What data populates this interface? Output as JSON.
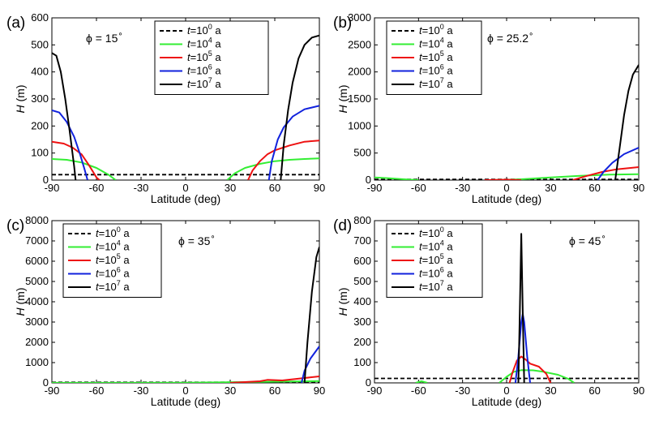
{
  "figure": {
    "legend_entries": [
      {
        "t_base": "10",
        "t_exp": "0",
        "unit": "a",
        "color": "#000000",
        "dash": true
      },
      {
        "t_base": "10",
        "t_exp": "4",
        "unit": "a",
        "color": "#33ee33",
        "dash": false
      },
      {
        "t_base": "10",
        "t_exp": "5",
        "unit": "a",
        "color": "#ee1111",
        "dash": false
      },
      {
        "t_base": "10",
        "t_exp": "6",
        "unit": "a",
        "color": "#1122dd",
        "dash": false
      },
      {
        "t_base": "10",
        "t_exp": "7",
        "unit": "a",
        "color": "#000000",
        "dash": false
      }
    ],
    "t_symbol": "t",
    "equals": "=",
    "phi_symbol": "ϕ"
  },
  "chart_data": [
    {
      "type": "line",
      "panel_label": "(a)",
      "phi_value": "15",
      "phi_unit": "∘",
      "xlabel": "Latitude (deg)",
      "ylabel_symbol": "H",
      "ylabel_unit": "(m)",
      "xlim": [
        -90,
        90
      ],
      "ylim": [
        0,
        600
      ],
      "xticks": [
        -90,
        -60,
        -30,
        0,
        30,
        60,
        90
      ],
      "yticks": [
        0,
        100,
        200,
        300,
        400,
        500,
        600
      ],
      "legend_position": "top-center",
      "series": [
        {
          "name": "t=10^0 a",
          "color": "#000000",
          "dash": true,
          "segments": [
            [
              [
                -90,
                20
              ],
              [
                90,
                20
              ]
            ]
          ]
        },
        {
          "name": "t=10^4 a",
          "color": "#33ee33",
          "segments": [
            [
              [
                -90,
                78
              ],
              [
                -80,
                75
              ],
              [
                -70,
                65
              ],
              [
                -60,
                45
              ],
              [
                -52,
                20
              ],
              [
                -47,
                0
              ]
            ],
            [
              [
                28,
                0
              ],
              [
                33,
                25
              ],
              [
                40,
                45
              ],
              [
                50,
                60
              ],
              [
                60,
                70
              ],
              [
                70,
                75
              ],
              [
                80,
                78
              ],
              [
                90,
                80
              ]
            ]
          ]
        },
        {
          "name": "t=10^5 a",
          "color": "#ee1111",
          "segments": [
            [
              [
                -90,
                142
              ],
              [
                -82,
                135
              ],
              [
                -76,
                120
              ],
              [
                -70,
                95
              ],
              [
                -65,
                55
              ],
              [
                -60,
                10
              ],
              [
                -58,
                0
              ]
            ],
            [
              [
                42,
                0
              ],
              [
                45,
                35
              ],
              [
                50,
                70
              ],
              [
                55,
                95
              ],
              [
                60,
                110
              ],
              [
                70,
                128
              ],
              [
                80,
                142
              ],
              [
                90,
                146
              ]
            ]
          ]
        },
        {
          "name": "t=10^6 a",
          "color": "#1122dd",
          "segments": [
            [
              [
                -90,
                258
              ],
              [
                -85,
                250
              ],
              [
                -80,
                215
              ],
              [
                -75,
                160
              ],
              [
                -71,
                95
              ],
              [
                -68,
                40
              ],
              [
                -66,
                0
              ]
            ],
            [
              [
                56,
                0
              ],
              [
                58,
                70
              ],
              [
                62,
                150
              ],
              [
                66,
                195
              ],
              [
                72,
                235
              ],
              [
                80,
                262
              ],
              [
                90,
                275
              ]
            ]
          ]
        },
        {
          "name": "t=10^7 a",
          "color": "#000000",
          "segments": [
            [
              [
                -90,
                470
              ],
              [
                -87,
                460
              ],
              [
                -84,
                400
              ],
              [
                -81,
                300
              ],
              [
                -78,
                180
              ],
              [
                -75,
                50
              ],
              [
                -74,
                0
              ]
            ],
            [
              [
                64,
                0
              ],
              [
                66,
                130
              ],
              [
                69,
                260
              ],
              [
                72,
                360
              ],
              [
                76,
                450
              ],
              [
                80,
                500
              ],
              [
                85,
                527
              ],
              [
                90,
                535
              ]
            ]
          ]
        }
      ]
    },
    {
      "type": "line",
      "panel_label": "(b)",
      "phi_value": "25.2",
      "phi_unit": "∘",
      "xlabel": "Latitude (deg)",
      "ylabel_symbol": "H",
      "ylabel_unit": "(m)",
      "xlim": [
        -90,
        90
      ],
      "ylim": [
        0,
        3000
      ],
      "xticks": [
        -90,
        -60,
        -30,
        0,
        30,
        60,
        90
      ],
      "yticks": [
        0,
        500,
        1000,
        1500,
        2000,
        2500,
        3000
      ],
      "legend_position": "top-left",
      "series": [
        {
          "name": "t=10^0 a",
          "color": "#000000",
          "dash": true,
          "segments": [
            [
              [
                -90,
                12
              ],
              [
                90,
                12
              ]
            ]
          ]
        },
        {
          "name": "t=10^4 a",
          "color": "#33ee33",
          "segments": [
            [
              [
                -90,
                50
              ],
              [
                -80,
                35
              ],
              [
                -70,
                15
              ],
              [
                -60,
                0
              ]
            ],
            [
              [
                -10,
                0
              ],
              [
                10,
                15
              ],
              [
                30,
                50
              ],
              [
                50,
                80
              ],
              [
                70,
                100
              ],
              [
                90,
                110
              ]
            ]
          ]
        },
        {
          "name": "t=10^5 a",
          "color": "#ee1111",
          "segments": [
            [
              [
                -15,
                0
              ],
              [
                0,
                8
              ],
              [
                10,
                0
              ]
            ],
            [
              [
                45,
                0
              ],
              [
                55,
                80
              ],
              [
                65,
                150
              ],
              [
                75,
                200
              ],
              [
                90,
                240
              ]
            ]
          ]
        },
        {
          "name": "t=10^6 a",
          "color": "#1122dd",
          "segments": [
            [
              [
                62,
                0
              ],
              [
                66,
                150
              ],
              [
                72,
                320
              ],
              [
                80,
                480
              ],
              [
                90,
                600
              ]
            ]
          ]
        },
        {
          "name": "t=10^7 a",
          "color": "#000000",
          "segments": [
            [
              [
                74,
                0
              ],
              [
                77,
                600
              ],
              [
                80,
                1200
              ],
              [
                83,
                1650
              ],
              [
                86,
                1950
              ],
              [
                90,
                2130
              ]
            ]
          ]
        }
      ]
    },
    {
      "type": "line",
      "panel_label": "(c)",
      "phi_value": "35",
      "phi_unit": "∘",
      "xlabel": "Latitude (deg)",
      "ylabel_symbol": "H",
      "ylabel_unit": "(m)",
      "xlim": [
        -90,
        90
      ],
      "ylim": [
        0,
        8000
      ],
      "xticks": [
        -90,
        -60,
        -30,
        0,
        30,
        60,
        90
      ],
      "yticks": [
        0,
        1000,
        2000,
        3000,
        4000,
        5000,
        6000,
        7000,
        8000
      ],
      "legend_position": "top-left",
      "series": [
        {
          "name": "t=10^0 a",
          "color": "#000000",
          "dash": true,
          "segments": [
            [
              [
                -90,
                30
              ],
              [
                90,
                30
              ]
            ]
          ]
        },
        {
          "name": "t=10^4 a",
          "color": "#33ee33",
          "segments": [
            [
              [
                -90,
                5
              ],
              [
                0,
                10
              ],
              [
                40,
                40
              ],
              [
                70,
                70
              ],
              [
                90,
                90
              ]
            ]
          ]
        },
        {
          "name": "t=10^5 a",
          "color": "#ee1111",
          "segments": [
            [
              [
                30,
                0
              ],
              [
                50,
                80
              ],
              [
                55,
                150
              ],
              [
                65,
                120
              ],
              [
                75,
                200
              ],
              [
                90,
                320
              ]
            ]
          ]
        },
        {
          "name": "t=10^6 a",
          "color": "#1122dd",
          "segments": [
            [
              [
                78,
                0
              ],
              [
                80,
                600
              ],
              [
                84,
                1200
              ],
              [
                90,
                1800
              ]
            ]
          ]
        },
        {
          "name": "t=10^7 a",
          "color": "#000000",
          "segments": [
            [
              [
                80,
                0
              ],
              [
                82,
                2000
              ],
              [
                85,
                4500
              ],
              [
                88,
                6200
              ],
              [
                90,
                6700
              ]
            ]
          ]
        }
      ]
    },
    {
      "type": "line",
      "panel_label": "(d)",
      "phi_value": "45",
      "phi_unit": "∘",
      "xlabel": "Latitude (deg)",
      "ylabel_symbol": "H",
      "ylabel_unit": "(m)",
      "xlim": [
        -90,
        90
      ],
      "ylim": [
        0,
        800
      ],
      "xticks": [
        -90,
        -60,
        -30,
        0,
        30,
        60,
        90
      ],
      "yticks": [
        0,
        100,
        200,
        300,
        400,
        500,
        600,
        700,
        800
      ],
      "legend_position": "top-left",
      "series": [
        {
          "name": "t=10^0 a",
          "color": "#000000",
          "dash": true,
          "segments": [
            [
              [
                -90,
                22
              ],
              [
                90,
                22
              ]
            ]
          ]
        },
        {
          "name": "t=10^4 a",
          "color": "#33ee33",
          "segments": [
            [
              [
                -62,
                0
              ],
              [
                -58,
                8
              ],
              [
                -54,
                0
              ]
            ],
            [
              [
                -5,
                0
              ],
              [
                0,
                30
              ],
              [
                5,
                55
              ],
              [
                10,
                63
              ],
              [
                18,
                62
              ],
              [
                25,
                55
              ],
              [
                35,
                40
              ],
              [
                42,
                20
              ],
              [
                46,
                0
              ]
            ]
          ]
        },
        {
          "name": "t=10^5 a",
          "color": "#ee1111",
          "segments": [
            [
              [
                2,
                0
              ],
              [
                4,
                50
              ],
              [
                7,
                110
              ],
              [
                10,
                130
              ],
              [
                13,
                115
              ],
              [
                16,
                95
              ],
              [
                22,
                80
              ],
              [
                27,
                45
              ],
              [
                30,
                0
              ]
            ]
          ]
        },
        {
          "name": "t=10^6 a",
          "color": "#1122dd",
          "segments": [
            [
              [
                6,
                0
              ],
              [
                8,
                130
              ],
              [
                10,
                300
              ],
              [
                11,
                340
              ],
              [
                12,
                300
              ],
              [
                14,
                130
              ],
              [
                16,
                0
              ]
            ]
          ]
        },
        {
          "name": "t=10^7 a",
          "color": "#000000",
          "segments": [
            [
              [
                8,
                0
              ],
              [
                9,
                350
              ],
              [
                10,
                735
              ],
              [
                11,
                350
              ],
              [
                12,
                0
              ]
            ]
          ]
        }
      ]
    }
  ]
}
